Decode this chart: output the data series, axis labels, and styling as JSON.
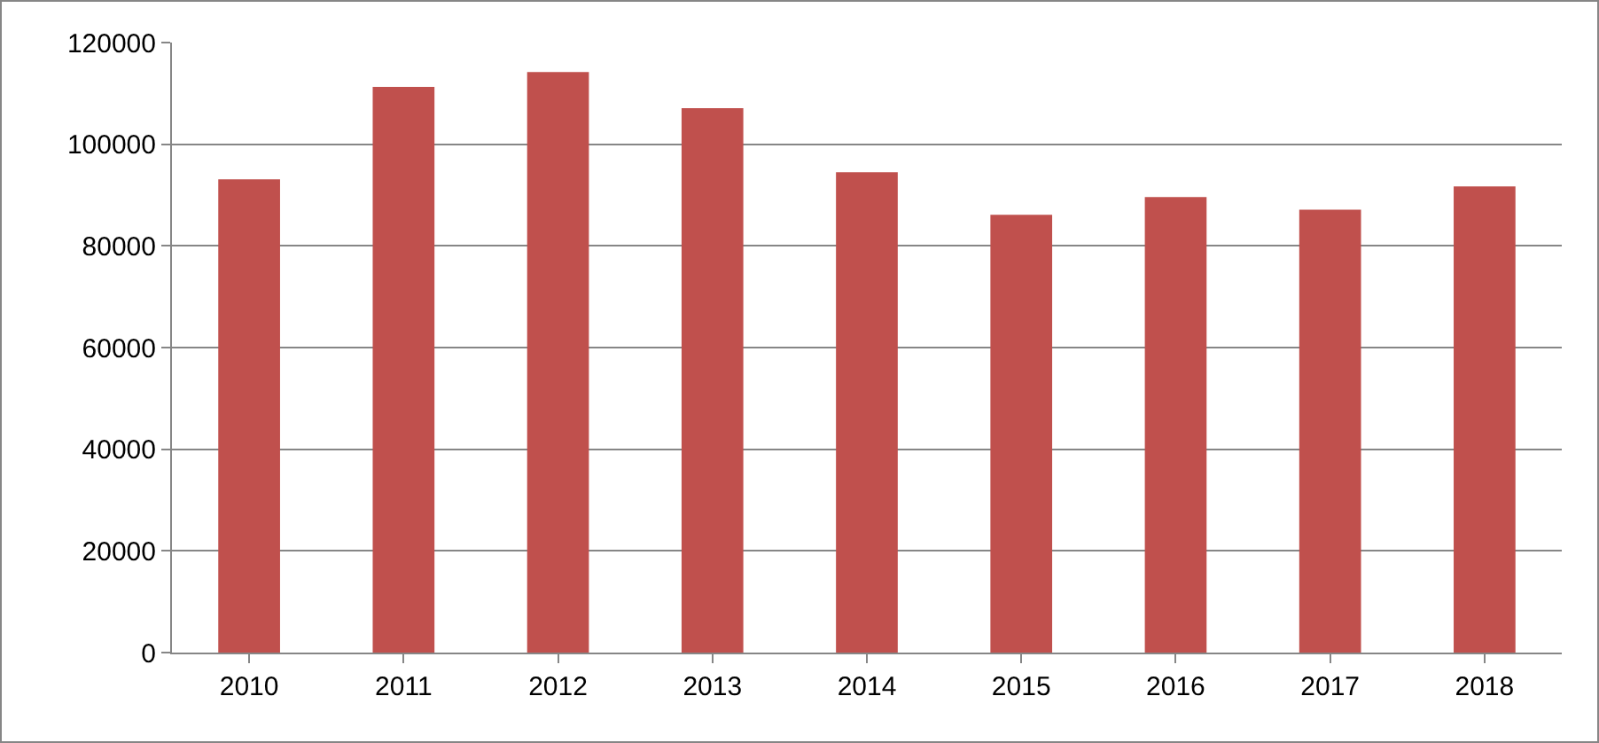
{
  "chart_data": {
    "type": "bar",
    "categories": [
      "2010",
      "2011",
      "2012",
      "2013",
      "2014",
      "2015",
      "2016",
      "2017",
      "2018"
    ],
    "series": [
      {
        "color": "#c0504d",
        "values": [
          93100,
          111300,
          114200,
          107100,
          94500,
          86100,
          89600,
          87100,
          91700
        ]
      }
    ],
    "ylim": [
      0,
      120000
    ],
    "yticks": [
      0,
      20000,
      40000,
      60000,
      80000,
      100000,
      120000
    ],
    "grid": "y"
  }
}
